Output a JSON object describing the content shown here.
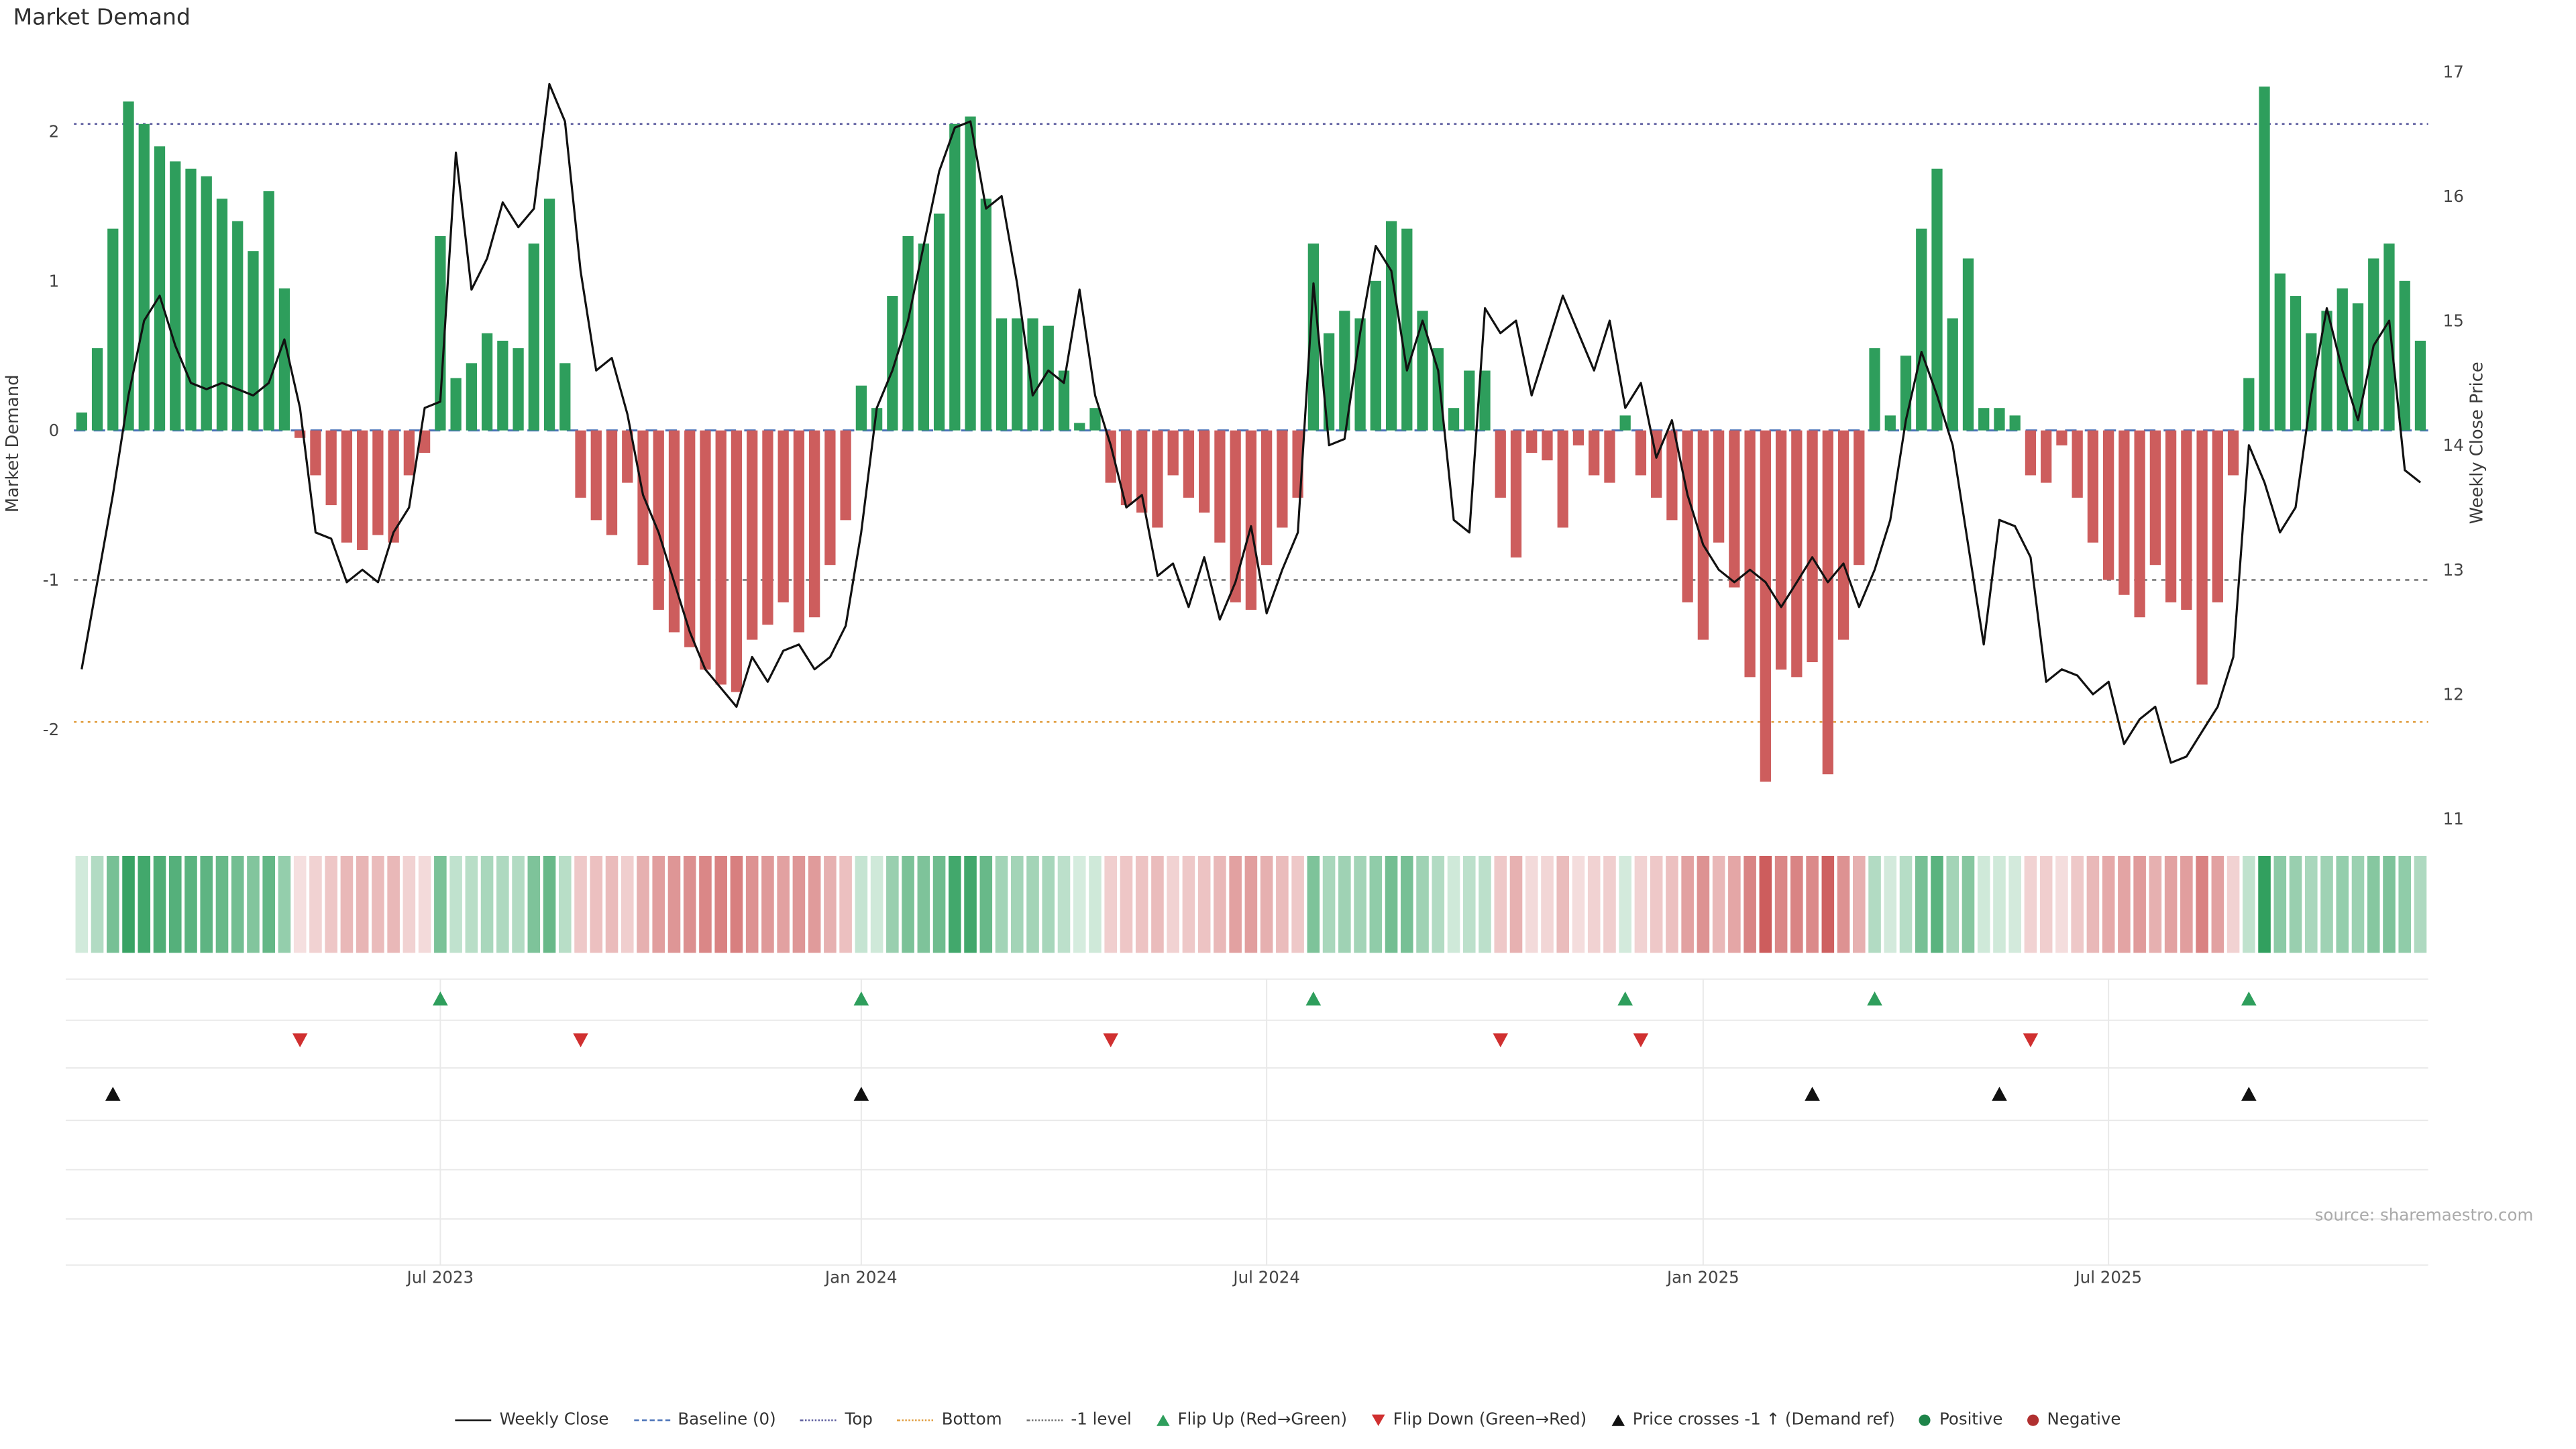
{
  "page": {
    "title": "Market Demand",
    "source": "source: sharemaestro.com"
  },
  "colors": {
    "positive": "#2e9e5c",
    "negative": "#cd5d5d",
    "price_line": "#111111",
    "baseline": "#4a72b8",
    "top": "#5c5c9e",
    "bottom": "#e09c3c",
    "minus1": "#707070",
    "flip_up": "#2e9e5c",
    "flip_down": "#d03030",
    "price_cross": "#111111",
    "positive_dot": "#1e8449",
    "negative_dot": "#b03030",
    "grid": "#e9e9e9",
    "tick_text": "#444444"
  },
  "chart_data": {
    "type": "bar+line",
    "title": "Market Demand",
    "x_unit": "weeks",
    "x_ticks": [
      {
        "index": 23,
        "label": "Jul 2023"
      },
      {
        "index": 50,
        "label": "Jan 2024"
      },
      {
        "index": 76,
        "label": "Jul 2024"
      },
      {
        "index": 104,
        "label": "Jan 2025"
      },
      {
        "index": 130,
        "label": "Jul 2025"
      }
    ],
    "left_axis": {
      "label": "Market Demand",
      "ticks": [
        2,
        1,
        0,
        -1,
        -2
      ],
      "range": [
        -2.65,
        2.45
      ]
    },
    "right_axis": {
      "label": "Weekly Close Price",
      "ticks": [
        17,
        16,
        15,
        14,
        13,
        12,
        11
      ],
      "range": [
        10.9,
        17.05
      ]
    },
    "levels": {
      "baseline": 0,
      "top": 2.05,
      "bottom": -1.95,
      "minus1": -1
    },
    "series": [
      {
        "name": "Market Demand",
        "type": "bar",
        "values": [
          0.12,
          0.55,
          1.35,
          2.2,
          2.05,
          1.9,
          1.8,
          1.75,
          1.7,
          1.55,
          1.4,
          1.2,
          1.6,
          0.95,
          -0.05,
          -0.3,
          -0.5,
          -0.75,
          -0.8,
          -0.7,
          -0.75,
          -0.3,
          -0.15,
          1.3,
          0.35,
          0.45,
          0.65,
          0.6,
          0.55,
          1.25,
          1.55,
          0.45,
          -0.45,
          -0.6,
          -0.7,
          -0.35,
          -0.9,
          -1.2,
          -1.35,
          -1.45,
          -1.6,
          -1.7,
          -1.75,
          -1.4,
          -1.3,
          -1.15,
          -1.35,
          -1.25,
          -0.9,
          -0.6,
          0.3,
          0.15,
          0.9,
          1.3,
          1.25,
          1.45,
          2.05,
          2.1,
          1.55,
          0.75,
          0.75,
          0.75,
          0.7,
          0.4,
          0.05,
          0.15,
          -0.35,
          -0.5,
          -0.55,
          -0.65,
          -0.3,
          -0.45,
          -0.55,
          -0.75,
          -1.15,
          -1.2,
          -0.9,
          -0.65,
          -0.45,
          1.25,
          0.65,
          0.8,
          0.75,
          1.0,
          1.4,
          1.35,
          0.8,
          0.55,
          0.15,
          0.4,
          0.4,
          -0.45,
          -0.85,
          -0.15,
          -0.2,
          -0.65,
          -0.1,
          -0.3,
          -0.35,
          0.1,
          -0.3,
          -0.45,
          -0.6,
          -1.15,
          -1.4,
          -0.75,
          -1.05,
          -1.65,
          -2.35,
          -1.6,
          -1.65,
          -1.55,
          -2.3,
          -1.4,
          -0.9,
          0.55,
          0.1,
          0.5,
          1.35,
          1.75,
          0.75,
          1.15,
          0.15,
          0.15,
          0.1,
          -0.3,
          -0.35,
          -0.1,
          -0.45,
          -0.75,
          -1.0,
          -1.1,
          -1.25,
          -0.9,
          -1.15,
          -1.2,
          -1.7,
          -1.15,
          -0.3,
          0.35,
          2.3,
          1.05,
          0.9,
          0.65,
          0.8,
          0.95,
          0.85,
          1.15,
          1.25,
          1.0,
          0.6
        ]
      },
      {
        "name": "Weekly Close",
        "type": "line",
        "values": [
          12.2,
          12.9,
          13.6,
          14.4,
          15.0,
          15.2,
          14.8,
          14.5,
          14.45,
          14.5,
          14.45,
          14.4,
          14.5,
          14.85,
          14.3,
          13.3,
          13.25,
          12.9,
          13.0,
          12.9,
          13.3,
          13.5,
          14.3,
          14.35,
          16.35,
          15.25,
          15.5,
          15.95,
          15.75,
          15.9,
          16.9,
          16.6,
          15.4,
          14.6,
          14.7,
          14.25,
          13.6,
          13.3,
          12.9,
          12.5,
          12.2,
          12.05,
          11.9,
          12.3,
          12.1,
          12.35,
          12.4,
          12.2,
          12.3,
          12.55,
          13.3,
          14.3,
          14.6,
          15.0,
          15.6,
          16.2,
          16.55,
          16.6,
          15.9,
          16.0,
          15.3,
          14.4,
          14.6,
          14.5,
          15.25,
          14.4,
          14.0,
          13.5,
          13.6,
          12.95,
          13.05,
          12.7,
          13.1,
          12.6,
          12.9,
          13.35,
          12.65,
          13.0,
          13.3,
          15.3,
          14.0,
          14.05,
          14.9,
          15.6,
          15.4,
          14.6,
          15.0,
          14.6,
          13.4,
          13.3,
          15.1,
          14.9,
          15.0,
          14.4,
          14.8,
          15.2,
          14.9,
          14.6,
          15.0,
          14.3,
          14.5,
          13.9,
          14.2,
          13.6,
          13.2,
          13.0,
          12.9,
          13.0,
          12.9,
          12.7,
          12.9,
          13.1,
          12.9,
          13.05,
          12.7,
          13.0,
          13.4,
          14.2,
          14.75,
          14.4,
          14.0,
          13.2,
          12.4,
          13.4,
          13.35,
          13.1,
          12.1,
          12.2,
          12.15,
          12.0,
          12.1,
          11.6,
          11.8,
          11.9,
          11.45,
          11.5,
          11.7,
          11.9,
          12.3,
          14.0,
          13.7,
          13.3,
          13.5,
          14.4,
          15.1,
          14.6,
          14.2,
          14.8,
          15.0,
          13.8,
          13.7
        ]
      }
    ],
    "markers": {
      "flip_up": {
        "label": "Flip Up (Red→Green)",
        "indices": [
          23,
          50,
          79,
          99,
          115,
          139
        ]
      },
      "flip_down": {
        "label": "Flip Down (Green→Red)",
        "indices": [
          14,
          32,
          66,
          91,
          100,
          125
        ]
      },
      "price_cross": {
        "label": "Price crosses -1 ↑ (Demand ref)",
        "indices": [
          2,
          50,
          111,
          123,
          139
        ]
      }
    },
    "heatmap_strip": true,
    "legend_position": "bottom-center"
  },
  "legend": [
    {
      "symbol": "line",
      "color": "#111111",
      "label": "Weekly Close"
    },
    {
      "symbol": "dash",
      "color": "#4a72b8",
      "label": "Baseline (0)"
    },
    {
      "symbol": "dot",
      "color": "#5c5c9e",
      "label": "Top"
    },
    {
      "symbol": "dot",
      "color": "#e09c3c",
      "label": "Bottom"
    },
    {
      "symbol": "dot",
      "color": "#707070",
      "label": "-1 level"
    },
    {
      "symbol": "tri-up",
      "color": "#2e9e5c",
      "label": "Flip Up (Red→Green)"
    },
    {
      "symbol": "tri-down",
      "color": "#d03030",
      "label": "Flip Down (Green→Red)"
    },
    {
      "symbol": "tri-up",
      "color": "#111111",
      "label": "Price crosses -1 ↑ (Demand ref)"
    },
    {
      "symbol": "circle",
      "color": "#1e8449",
      "label": "Positive"
    },
    {
      "symbol": "circle",
      "color": "#b03030",
      "label": "Negative"
    }
  ]
}
